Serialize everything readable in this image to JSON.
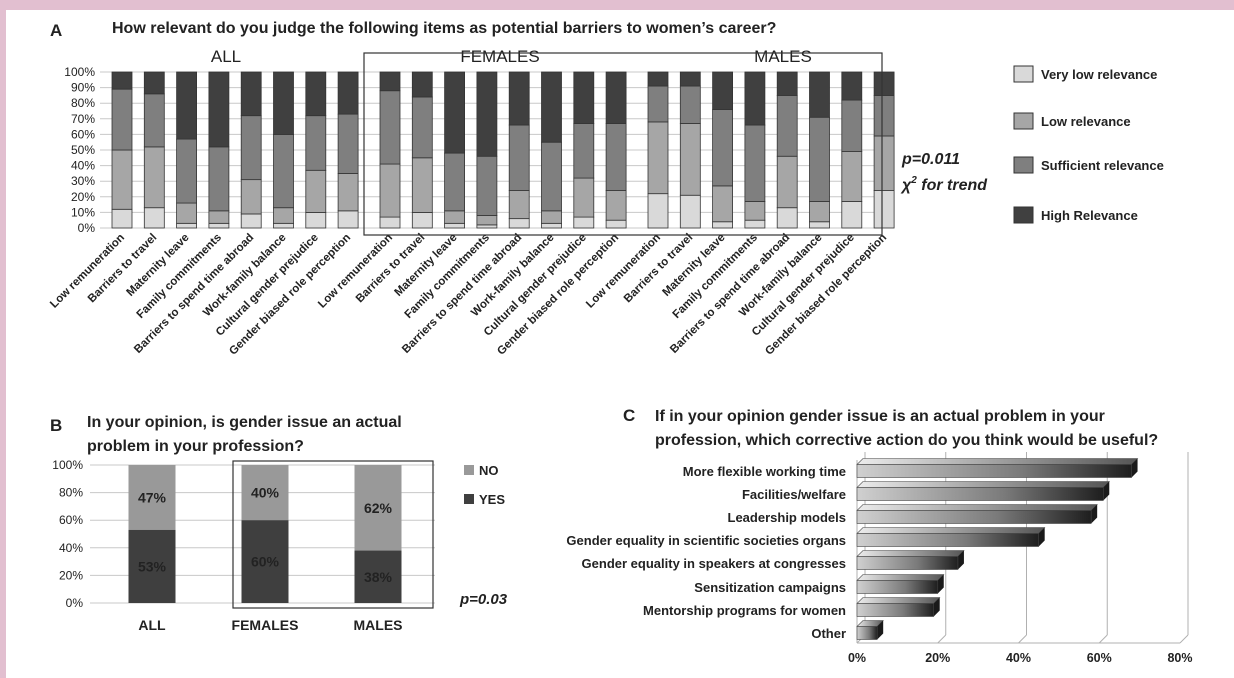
{
  "chart_data": [
    {
      "panel": "A",
      "type": "bar",
      "stacked": true,
      "title": "How relevant do you judge the following items as potential barriers to women’s career?",
      "group_titles": [
        "ALL",
        "FEMALES",
        "MALES"
      ],
      "categories": [
        "Low remuneration",
        "Barriers to travel",
        "Maternity leave",
        "Family commitments",
        "Barriers to spend time abroad",
        "Work-family balance",
        "Cultural gender prejudice",
        "Gender biased role perception"
      ],
      "yticks": [
        "0%",
        "10%",
        "20%",
        "30%",
        "40%",
        "50%",
        "60%",
        "70%",
        "80%",
        "90%",
        "100%"
      ],
      "ylim": [
        0,
        100
      ],
      "series": [
        {
          "name": "Very low relevance",
          "color": "#d9d9d9"
        },
        {
          "name": "Low relevance",
          "color": "#a6a6a6"
        },
        {
          "name": "Sufficient relevance",
          "color": "#7f7f7f"
        },
        {
          "name": "High Relevance",
          "color": "#404040"
        }
      ],
      "groups": [
        {
          "name": "ALL",
          "cumulative": [
            [
              12,
              50,
              89
            ],
            [
              13,
              52,
              86
            ],
            [
              3,
              16,
              57
            ],
            [
              3,
              11,
              52
            ],
            [
              9,
              31,
              72
            ],
            [
              3,
              13,
              60
            ],
            [
              10,
              37,
              72
            ],
            [
              11,
              35,
              73
            ]
          ]
        },
        {
          "name": "FEMALES",
          "cumulative": [
            [
              7,
              41,
              88
            ],
            [
              10,
              45,
              84
            ],
            [
              3,
              11,
              48
            ],
            [
              2,
              8,
              46
            ],
            [
              6,
              24,
              66
            ],
            [
              3,
              11,
              55
            ],
            [
              7,
              32,
              67
            ],
            [
              5,
              24,
              67
            ]
          ]
        },
        {
          "name": "MALES",
          "cumulative": [
            [
              22,
              68,
              91
            ],
            [
              21,
              67,
              91
            ],
            [
              4,
              27,
              76
            ],
            [
              5,
              17,
              66
            ],
            [
              13,
              46,
              85
            ],
            [
              4,
              17,
              71
            ],
            [
              17,
              49,
              82
            ],
            [
              24,
              59,
              85
            ]
          ]
        }
      ],
      "annotation": {
        "p": "p=0.011",
        "chi_base": "χ",
        "chi_sup": "2",
        "chi_tail": " for trend"
      }
    },
    {
      "panel": "B",
      "type": "bar",
      "stacked": true,
      "title_lines": [
        "In your opinion, is gender issue an actual",
        "problem in your profession?"
      ],
      "categories": [
        "ALL",
        "FEMALES",
        "MALES"
      ],
      "yticks": [
        "0%",
        "20%",
        "40%",
        "60%",
        "80%",
        "100%"
      ],
      "ylim": [
        0,
        100
      ],
      "series": [
        {
          "name": "NO",
          "values": [
            47,
            40,
            62
          ],
          "labels": [
            "47%",
            "40%",
            "62%"
          ],
          "color": "#999999"
        },
        {
          "name": "YES",
          "values": [
            53,
            60,
            38
          ],
          "labels": [
            "53%",
            "60%",
            "38%"
          ],
          "color": "#3f3f3f"
        }
      ],
      "annotation": "p=0.03"
    },
    {
      "panel": "C",
      "type": "bar",
      "orientation": "horizontal",
      "title_lines": [
        "If in your opinion gender issue is an actual problem in your",
        "profession, which corrective action do you think would be useful?"
      ],
      "categories": [
        "More flexible working time",
        "Facilities/welfare",
        "Leadership models",
        "Gender equality in scientific societies organs",
        "Gender equality in speakers at congresses",
        "Sensitization campaigns",
        "Mentorship programs for women",
        "Other"
      ],
      "values": [
        68,
        61,
        58,
        45,
        25,
        20,
        19,
        5
      ],
      "xticks": [
        "0%",
        "20%",
        "40%",
        "60%",
        "80%"
      ],
      "xlim": [
        0,
        80
      ]
    }
  ],
  "panel_letters": [
    "A",
    "B",
    "C"
  ]
}
